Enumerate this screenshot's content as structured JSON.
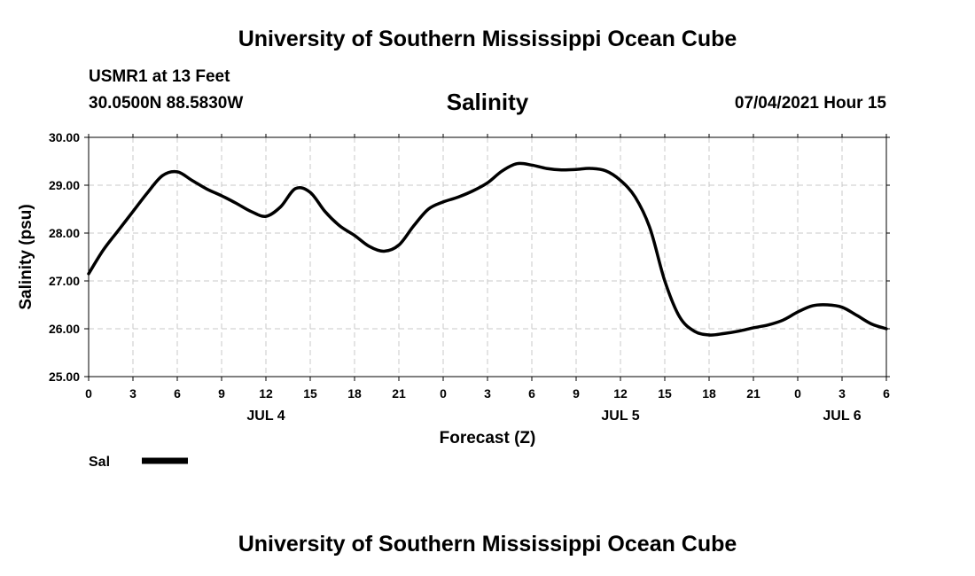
{
  "header": {
    "top_title": "University of Southern Mississippi Ocean Cube",
    "station_name": "USMR1 at 13 Feet",
    "station_coords": "30.0500N  88.5830W",
    "run_time": "07/04/2021 Hour 15",
    "bottom_title": "University of Southern Mississippi Ocean Cube"
  },
  "chart_data": {
    "type": "line",
    "title": "Salinity",
    "xlabel": "Forecast (Z)",
    "ylabel": "Salinity (psu)",
    "ylim": [
      25.0,
      30.0
    ],
    "xlim": [
      0,
      54
    ],
    "grid": true,
    "x_tick_hours": [
      0,
      3,
      6,
      9,
      12,
      15,
      18,
      21,
      24,
      27,
      30,
      33,
      36,
      39,
      42,
      45,
      48,
      51,
      54
    ],
    "x_tick_labels": [
      "0",
      "3",
      "6",
      "9",
      "12",
      "15",
      "18",
      "21",
      "0",
      "3",
      "6",
      "9",
      "12",
      "15",
      "18",
      "21",
      "0",
      "3",
      "6"
    ],
    "y_ticks": [
      25.0,
      26.0,
      27.0,
      28.0,
      29.0,
      30.0
    ],
    "y_tick_labels": [
      "25.00",
      "26.00",
      "27.00",
      "28.00",
      "29.00",
      "30.00"
    ],
    "date_labels": [
      {
        "hour": 12,
        "label": "JUL 4"
      },
      {
        "hour": 36,
        "label": "JUL 5"
      },
      {
        "hour": 51,
        "label": "JUL 6"
      }
    ],
    "legend": {
      "label": "Sal",
      "placement": "bottom-left"
    },
    "series": [
      {
        "name": "Sal",
        "color": "#000000",
        "x": [
          0,
          1,
          2,
          3,
          4,
          5,
          6,
          7,
          8,
          9,
          10,
          11,
          12,
          13,
          14,
          15,
          16,
          17,
          18,
          19,
          20,
          21,
          22,
          23,
          24,
          25,
          26,
          27,
          28,
          29,
          30,
          31,
          32,
          33,
          34,
          35,
          36,
          37,
          38,
          39,
          40,
          41,
          42,
          43,
          44,
          45,
          46,
          47,
          48,
          49,
          50,
          51,
          52,
          53,
          54
        ],
        "values": [
          27.15,
          27.65,
          28.05,
          28.45,
          28.85,
          29.2,
          29.28,
          29.1,
          28.92,
          28.78,
          28.62,
          28.45,
          28.35,
          28.55,
          28.93,
          28.85,
          28.45,
          28.15,
          27.95,
          27.72,
          27.62,
          27.75,
          28.15,
          28.5,
          28.65,
          28.75,
          28.88,
          29.05,
          29.3,
          29.45,
          29.42,
          29.35,
          29.32,
          29.33,
          29.35,
          29.3,
          29.1,
          28.75,
          28.1,
          27.0,
          26.25,
          25.95,
          25.87,
          25.9,
          25.95,
          26.02,
          26.08,
          26.18,
          26.35,
          26.48,
          26.5,
          26.45,
          26.28,
          26.1,
          26.0
        ]
      }
    ]
  }
}
